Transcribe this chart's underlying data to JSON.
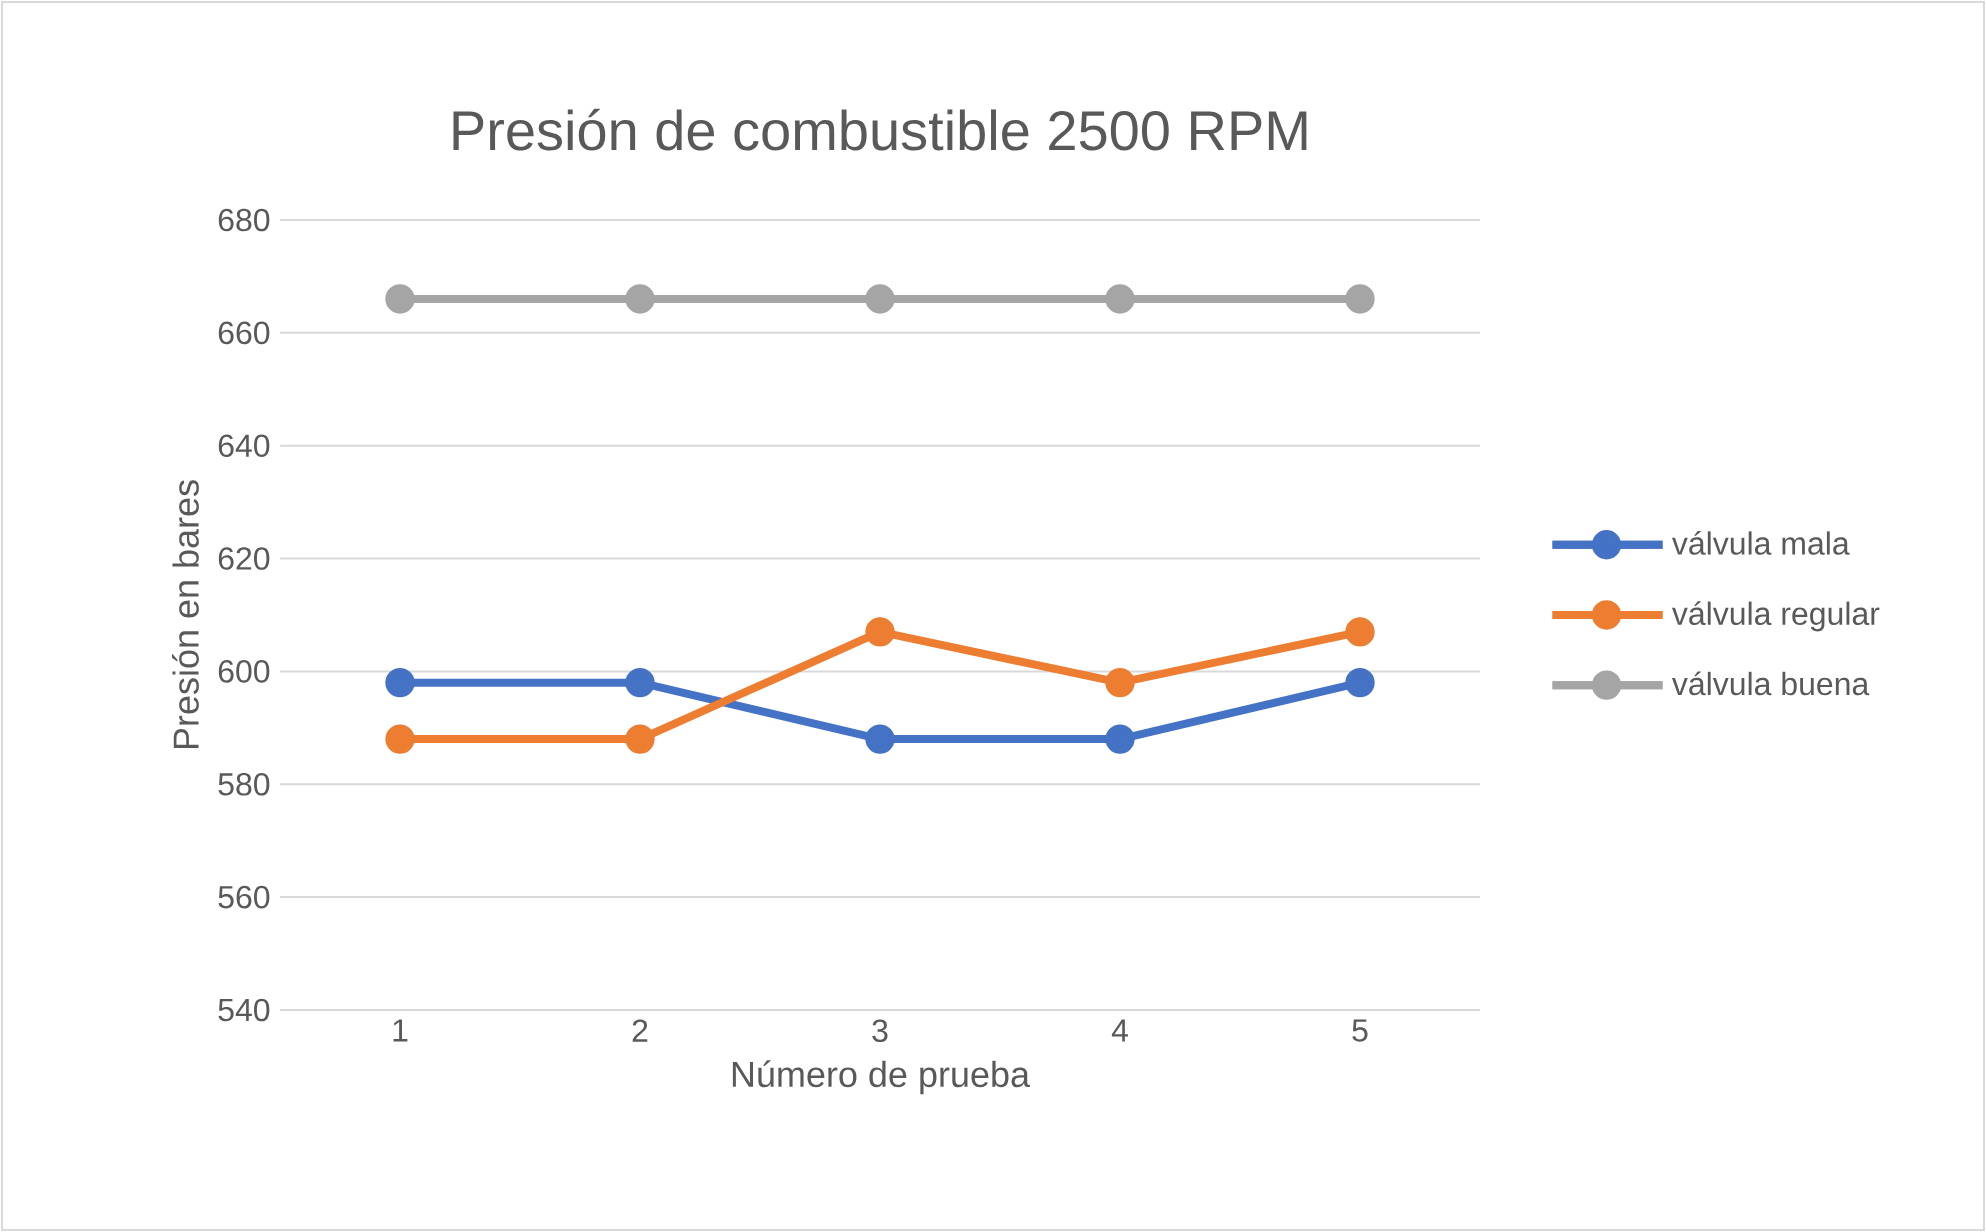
{
  "chart_data": {
    "type": "line",
    "title": "Presión de combustible  2500 RPM",
    "xlabel": "Número de prueba",
    "ylabel": "Presión en bares",
    "categories": [
      "1",
      "2",
      "3",
      "4",
      "5"
    ],
    "series": [
      {
        "name": "válvula mala",
        "color": "#4472c4",
        "values": [
          598,
          598,
          588,
          588,
          598
        ]
      },
      {
        "name": "válvula regular",
        "color": "#ed7d31",
        "values": [
          588,
          588,
          607,
          598,
          607
        ]
      },
      {
        "name": "válvula buena",
        "color": "#a5a5a5",
        "values": [
          666,
          666,
          666,
          666,
          666
        ]
      }
    ],
    "ylim": [
      540,
      680
    ],
    "yticks": [
      540,
      560,
      580,
      600,
      620,
      640,
      660,
      680
    ],
    "grid": "y",
    "legend": "right",
    "marker": "circle",
    "line_style": "solid"
  }
}
